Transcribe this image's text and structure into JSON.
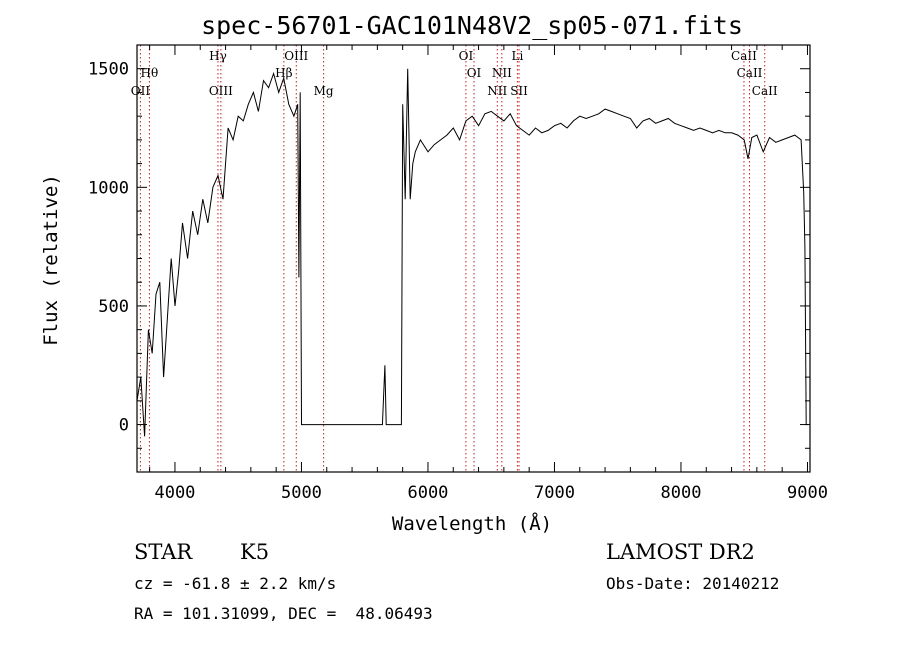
{
  "chart_data": {
    "type": "line",
    "title": "spec-56701-GAC101N48V2_sp05-071.fits",
    "xlabel": "Wavelength (Å)",
    "ylabel": "Flux (relative)",
    "xlim": [
      3700,
      9020
    ],
    "ylim": [
      -200,
      1600
    ],
    "xticks": [
      4000,
      5000,
      6000,
      7000,
      8000,
      9000
    ],
    "yticks": [
      0,
      500,
      1000,
      1500
    ],
    "grid": false,
    "lines": [
      {
        "name": "Hθ",
        "wavelength": 3798,
        "row": 2
      },
      {
        "name": "OII",
        "wavelength": 3727,
        "row": 3
      },
      {
        "name": "Hγ",
        "wavelength": 4340,
        "row": 1
      },
      {
        "name": "OIII",
        "wavelength": 4363,
        "row": 3
      },
      {
        "name": "Hβ",
        "wavelength": 4861,
        "row": 2
      },
      {
        "name": "OIII",
        "wavelength": 4959,
        "row": 1
      },
      {
        "name": "Mg",
        "wavelength": 5175,
        "row": 3
      },
      {
        "name": "OI",
        "wavelength": 6300,
        "row": 1
      },
      {
        "name": "OI",
        "wavelength": 6364,
        "row": 2
      },
      {
        "name": "NII",
        "wavelength": 6548,
        "row": 3
      },
      {
        "name": "NII",
        "wavelength": 6584,
        "row": 2
      },
      {
        "name": "Li",
        "wavelength": 6707,
        "row": 1
      },
      {
        "name": "SII",
        "wavelength": 6720,
        "row": 3
      },
      {
        "name": "CaII",
        "wavelength": 8498,
        "row": 1
      },
      {
        "name": "CaII",
        "wavelength": 8542,
        "row": 2
      },
      {
        "name": "CaII",
        "wavelength": 8662,
        "row": 3
      }
    ],
    "series": [
      {
        "x": [
          3700,
          3730,
          3760,
          3790,
          3820,
          3850,
          3880,
          3910,
          3940,
          3970,
          4000,
          4030,
          4060,
          4100,
          4140,
          4180,
          4220,
          4260,
          4300,
          4340,
          4380,
          4420,
          4460,
          4500,
          4540,
          4580,
          4620,
          4660,
          4700,
          4740,
          4780,
          4820,
          4860,
          4900,
          4940,
          4970,
          4980,
          4990,
          5000,
          5200,
          5400,
          5600,
          5640,
          5660,
          5670,
          5680,
          5700,
          5760,
          5780,
          5790,
          5800,
          5820,
          5840,
          5860,
          5880,
          5900,
          5940,
          6000,
          6050,
          6100,
          6150,
          6200,
          6250,
          6300,
          6350,
          6400,
          6450,
          6500,
          6550,
          6600,
          6650,
          6700,
          6750,
          6800,
          6850,
          6900,
          6950,
          7000,
          7050,
          7100,
          7150,
          7200,
          7250,
          7300,
          7350,
          7400,
          7450,
          7500,
          7550,
          7600,
          7650,
          7700,
          7750,
          7800,
          7850,
          7900,
          7950,
          8000,
          8050,
          8100,
          8150,
          8200,
          8250,
          8300,
          8350,
          8400,
          8450,
          8500,
          8530,
          8560,
          8600,
          8650,
          8700,
          8750,
          8800,
          8850,
          8900,
          8950,
          8970,
          8980,
          8990,
          9000
        ],
        "y": [
          100,
          200,
          -50,
          400,
          300,
          550,
          600,
          200,
          450,
          700,
          500,
          650,
          850,
          700,
          900,
          800,
          950,
          850,
          1000,
          1050,
          950,
          1250,
          1200,
          1300,
          1280,
          1350,
          1400,
          1320,
          1450,
          1420,
          1480,
          1400,
          1460,
          1350,
          1300,
          1350,
          620,
          1400,
          0,
          0,
          0,
          0,
          0,
          250,
          0,
          0,
          0,
          0,
          0,
          0,
          1350,
          950,
          1500,
          950,
          1100,
          1150,
          1200,
          1150,
          1180,
          1200,
          1220,
          1250,
          1200,
          1280,
          1300,
          1260,
          1310,
          1320,
          1300,
          1280,
          1310,
          1260,
          1240,
          1220,
          1250,
          1230,
          1240,
          1260,
          1270,
          1250,
          1280,
          1300,
          1290,
          1300,
          1310,
          1330,
          1320,
          1310,
          1300,
          1290,
          1250,
          1280,
          1290,
          1270,
          1280,
          1290,
          1270,
          1260,
          1250,
          1240,
          1250,
          1240,
          1230,
          1240,
          1230,
          1230,
          1220,
          1200,
          1120,
          1210,
          1220,
          1150,
          1210,
          1190,
          1200,
          1210,
          1220,
          1200,
          980,
          750,
          0,
          0
        ]
      }
    ]
  },
  "info": {
    "object_type": "STAR",
    "subclass": "K5",
    "survey": "LAMOST DR2",
    "cz": "cz = -61.8 ± 2.2 km/s",
    "obs_date": "Obs-Date: 20140212",
    "radec": "RA = 101.31099, DEC =  48.06493"
  }
}
